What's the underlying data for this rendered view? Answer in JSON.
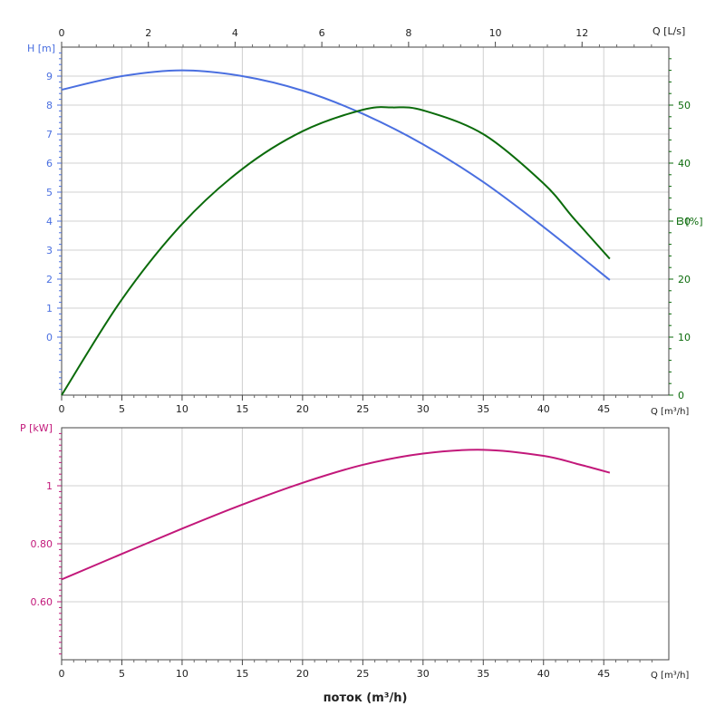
{
  "colors": {
    "head": "#4a6fe0",
    "efficiency": "#0b6b0b",
    "power": "#c2187a",
    "axis": "#222222",
    "grid": "#d0d0d0"
  },
  "chart_data": [
    {
      "type": "line",
      "panel": "head-efficiency",
      "top_axis": {
        "label": "Q [L/s]",
        "ticks": [
          0,
          2,
          4,
          6,
          8,
          10,
          12
        ],
        "range": [
          0,
          14.0
        ]
      },
      "x_axis": {
        "label": "Q [m³/h]",
        "ticks": [
          0,
          5,
          10,
          15,
          20,
          25,
          30,
          35,
          40,
          45
        ],
        "range": [
          0,
          50.4
        ]
      },
      "left_axis": {
        "label": "H [m]",
        "ticks": [
          0,
          1,
          2,
          3,
          4,
          5,
          6,
          7,
          8,
          9
        ],
        "range": [
          -2,
          10
        ]
      },
      "right_axis": {
        "label": "E [%]",
        "ticks": [
          0,
          10,
          20,
          30,
          40,
          50
        ],
        "range": [
          0,
          60
        ]
      },
      "grid": true,
      "series": [
        {
          "name": "H [m]",
          "axis": "left",
          "color_key": "head",
          "x": [
            0,
            5,
            10,
            15,
            20,
            25,
            30,
            35,
            40,
            45.5
          ],
          "y": [
            8.53,
            9.0,
            9.2,
            9.0,
            8.5,
            7.7,
            6.65,
            5.35,
            3.8,
            1.97
          ]
        },
        {
          "name": "E [%]",
          "axis": "right",
          "color_key": "efficiency",
          "x": [
            0,
            5,
            10,
            15,
            20,
            25,
            27.5,
            30,
            35,
            40,
            42.5,
            45.5
          ],
          "y": [
            0,
            16.5,
            29.5,
            39,
            45.5,
            49.2,
            49.6,
            49.1,
            45,
            36.5,
            30.5,
            23.5
          ]
        }
      ]
    },
    {
      "type": "line",
      "panel": "power",
      "x_axis": {
        "label": "Q [m³/h]",
        "ticks": [
          0,
          5,
          10,
          15,
          20,
          25,
          30,
          35,
          40,
          45
        ],
        "range": [
          0,
          50.4
        ]
      },
      "left_axis": {
        "label": "P [kW]",
        "ticks": [
          0.6,
          0.8,
          1.0
        ],
        "tick_labels": [
          "0.60",
          "0.80",
          "1"
        ],
        "range": [
          0.4,
          1.2
        ]
      },
      "grid": true,
      "series": [
        {
          "name": "P [kW]",
          "axis": "left",
          "color_key": "power",
          "x": [
            0,
            5,
            10,
            15,
            20,
            25,
            30,
            35,
            40,
            43,
            45.5
          ],
          "y": [
            0.677,
            0.765,
            0.852,
            0.935,
            1.01,
            1.072,
            1.111,
            1.124,
            1.103,
            1.073,
            1.045
          ]
        }
      ]
    }
  ],
  "xlabel_bottom": "поток (m³/h)"
}
